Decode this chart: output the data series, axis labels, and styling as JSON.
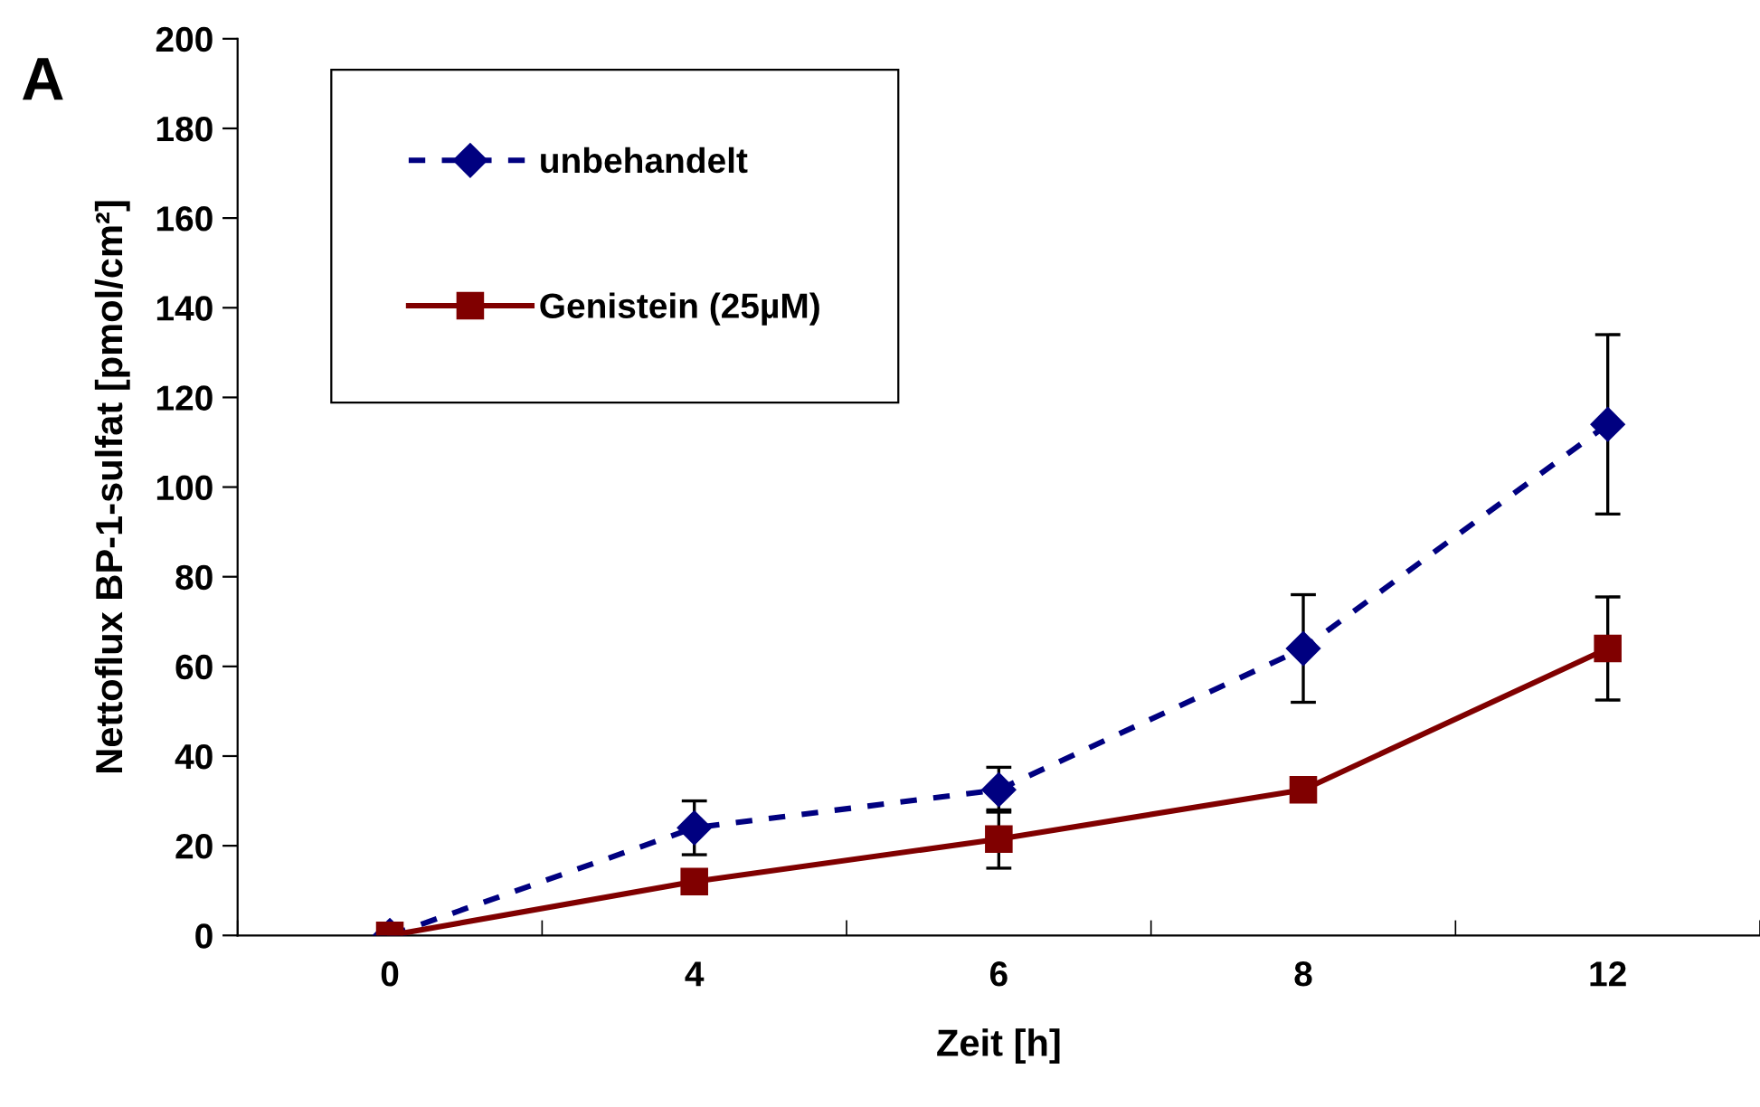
{
  "chart_data": {
    "type": "line",
    "xlabel": "Zeit [h]",
    "ylabel": "Nettoflux BP-1-sulfat [pmol/cm²]",
    "categories": [
      "0",
      "4",
      "6",
      "8",
      "12"
    ],
    "ylim": [
      0,
      200
    ],
    "yticks": [
      0,
      20,
      40,
      60,
      80,
      100,
      120,
      140,
      160,
      180,
      200
    ],
    "grid": false,
    "legend": "top left",
    "annotations": [
      "A"
    ],
    "series": [
      {
        "name": "unbehandelt",
        "color": "#000080",
        "marker": "diamond",
        "line_style": "dashed",
        "values": [
          0,
          24,
          32.5,
          64,
          114
        ],
        "errors": [
          null,
          6,
          5,
          12,
          20
        ]
      },
      {
        "name": "Genistein (25µM)",
        "color": "#800000",
        "marker": "square",
        "line_style": "solid",
        "values": [
          0,
          12,
          21.5,
          32.5,
          64
        ],
        "errors": [
          null,
          null,
          6.5,
          null,
          11.5
        ]
      }
    ]
  }
}
